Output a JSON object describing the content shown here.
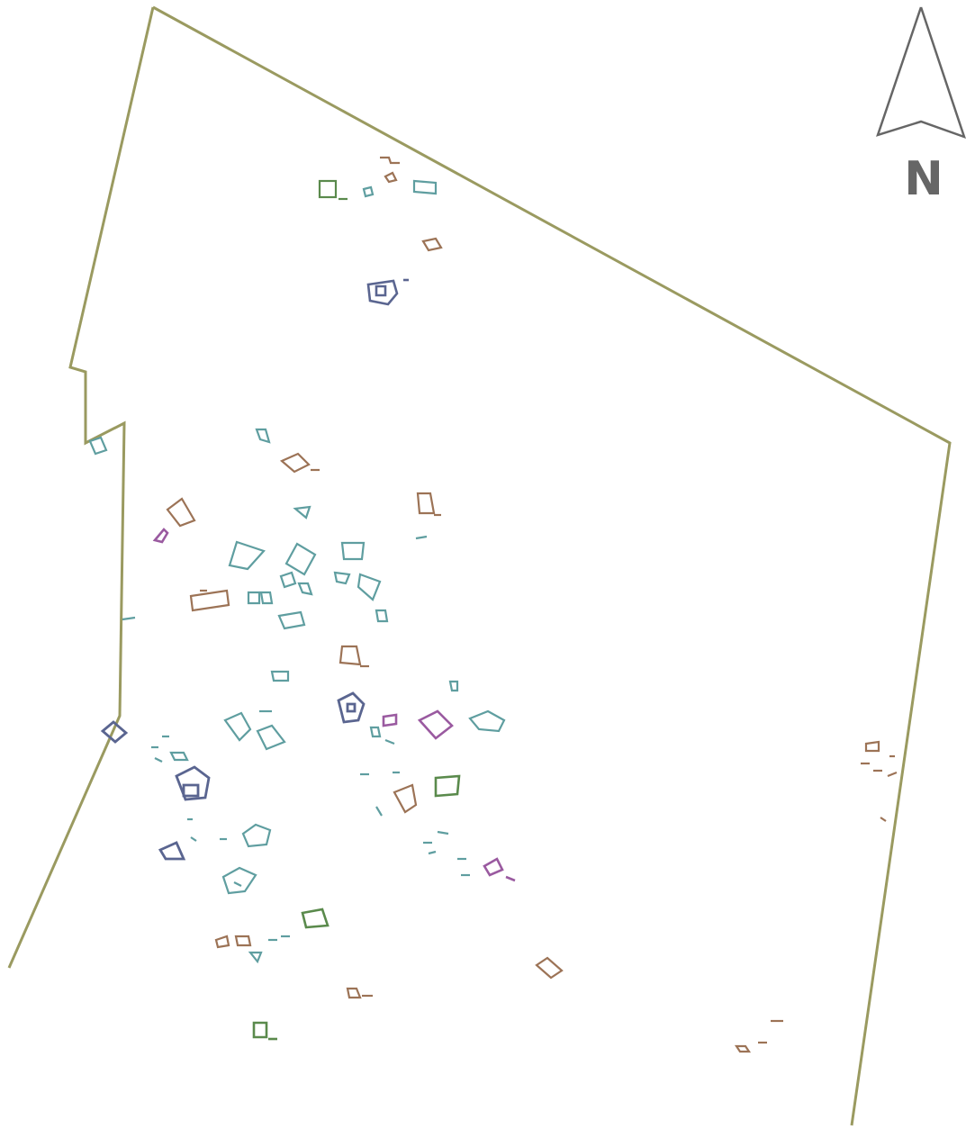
{
  "map": {
    "north_label": "N",
    "colors": {
      "boundary": "#9a9a60",
      "teal": "#5f9ea0",
      "brown": "#9c7356",
      "navy": "#5a6590",
      "green": "#5a8a4c",
      "purple": "#9a5aa0",
      "arrow": "#666666"
    }
  }
}
